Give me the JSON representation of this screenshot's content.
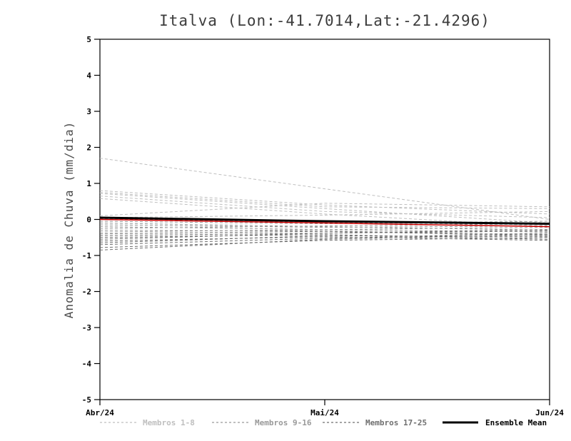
{
  "chart_data": {
    "type": "line",
    "title": "Italva (Lon:-41.7014,Lat:-21.4296)",
    "ylabel": "Anomalia de Chuva (mm/dia)",
    "xlabel": "",
    "ylim": [
      -5,
      5
    ],
    "ytick_interval": 1,
    "grid": false,
    "legend_position": "bottom",
    "x_categories": [
      "Abr/24",
      "Mai/24",
      "Jun/24"
    ],
    "legend": [
      {
        "label": "Membros 1-8",
        "style": "dashed",
        "color": "#bfbfbf"
      },
      {
        "label": "Membros 9-16",
        "style": "dashed",
        "color": "#999999"
      },
      {
        "label": "Membros 17-25",
        "style": "dashed",
        "color": "#6f6f6f"
      },
      {
        "label": "Ensemble Mean",
        "style": "solid",
        "color": "#000000"
      }
    ],
    "members": [
      {
        "group": 1,
        "values": [
          1.7,
          0.85,
          0.0
        ]
      },
      {
        "group": 1,
        "values": [
          0.8,
          0.4,
          0.15
        ]
      },
      {
        "group": 1,
        "values": [
          0.75,
          0.35,
          0.3
        ]
      },
      {
        "group": 1,
        "values": [
          0.72,
          0.3,
          -0.1
        ]
      },
      {
        "group": 1,
        "values": [
          0.65,
          0.22,
          0.05
        ]
      },
      {
        "group": 1,
        "values": [
          0.58,
          0.15,
          -0.2
        ]
      },
      {
        "group": 1,
        "values": [
          0.1,
          0.45,
          0.35
        ]
      },
      {
        "group": 1,
        "values": [
          0.05,
          0.12,
          0.22
        ]
      },
      {
        "group": 2,
        "values": [
          0.02,
          -0.08,
          -0.15
        ]
      },
      {
        "group": 2,
        "values": [
          -0.05,
          -0.12,
          -0.05
        ]
      },
      {
        "group": 2,
        "values": [
          -0.1,
          -0.2,
          -0.3
        ]
      },
      {
        "group": 2,
        "values": [
          -0.15,
          -0.22,
          -0.18
        ]
      },
      {
        "group": 2,
        "values": [
          -0.2,
          -0.28,
          -0.35
        ]
      },
      {
        "group": 2,
        "values": [
          -0.25,
          -0.18,
          -0.12
        ]
      },
      {
        "group": 2,
        "values": [
          -0.3,
          -0.32,
          -0.42
        ]
      },
      {
        "group": 2,
        "values": [
          -0.35,
          -0.28,
          -0.22
        ]
      },
      {
        "group": 3,
        "values": [
          -0.4,
          -0.33,
          -0.45
        ]
      },
      {
        "group": 3,
        "values": [
          -0.45,
          -0.38,
          -0.28
        ]
      },
      {
        "group": 3,
        "values": [
          -0.5,
          -0.42,
          -0.55
        ]
      },
      {
        "group": 3,
        "values": [
          -0.55,
          -0.38,
          -0.32
        ]
      },
      {
        "group": 3,
        "values": [
          -0.6,
          -0.48,
          -0.58
        ]
      },
      {
        "group": 3,
        "values": [
          -0.65,
          -0.45,
          -0.48
        ]
      },
      {
        "group": 3,
        "values": [
          -0.7,
          -0.52,
          -0.38
        ]
      },
      {
        "group": 3,
        "values": [
          -0.78,
          -0.58,
          -0.5
        ]
      },
      {
        "group": 3,
        "values": [
          -0.85,
          -0.55,
          -0.42
        ]
      }
    ],
    "red_line": {
      "color": "#cc0000",
      "values": [
        0.0,
        -0.1,
        -0.2
      ]
    },
    "ensemble_mean": {
      "color": "#000000",
      "values": [
        0.05,
        -0.05,
        -0.12
      ]
    }
  }
}
